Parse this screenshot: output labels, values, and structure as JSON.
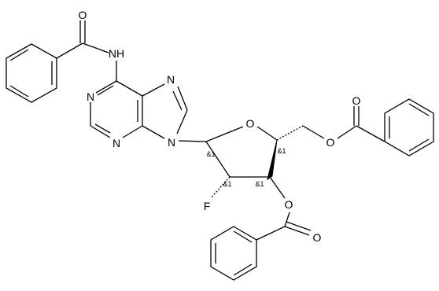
{
  "atoms": {
    "amide_n": "NH",
    "amide_o": "O",
    "n1": "N",
    "n3": "N",
    "n7": "N",
    "n9": "N",
    "ring_o": "O",
    "o5": "O",
    "ester5_o": "O",
    "o3": "O",
    "ester3_o": "O",
    "f": "F"
  },
  "stereo": [
    "&1",
    "&1",
    "&1",
    "&1"
  ]
}
